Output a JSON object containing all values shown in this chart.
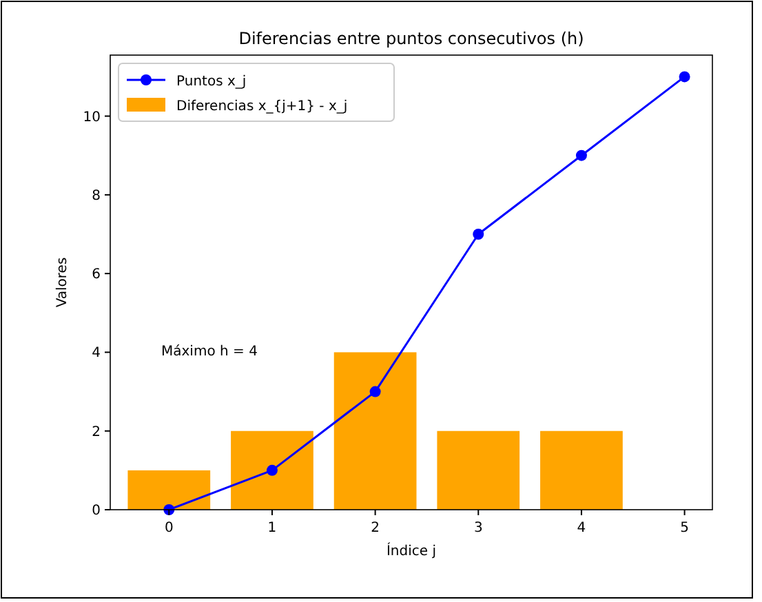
{
  "chart_data": {
    "type": "bar",
    "title": "Diferencias entre puntos consecutivos (h)",
    "xlabel": "Índice j",
    "ylabel": "Valores",
    "xlim": [
      -0.57,
      5.27
    ],
    "xticks": [
      0,
      1,
      2,
      3,
      4,
      5
    ],
    "ylim": [
      0,
      11.55
    ],
    "yticks": [
      0,
      2,
      4,
      6,
      8,
      10
    ],
    "series": [
      {
        "type": "line",
        "name": "Puntos x_j",
        "color": "#0000ff",
        "x": [
          0,
          1,
          2,
          3,
          4,
          5
        ],
        "values": [
          0,
          1,
          3,
          7,
          9,
          11
        ]
      },
      {
        "name": "Diferencias x_{j+1} - x_j",
        "color": "#ffa500",
        "x": [
          0,
          1,
          2,
          3,
          4
        ],
        "values": [
          1,
          2,
          4,
          2,
          2
        ]
      }
    ],
    "annotations": [
      "Máximo h = 4"
    ],
    "marker": "circle",
    "legend": "top left",
    "grid": false
  }
}
